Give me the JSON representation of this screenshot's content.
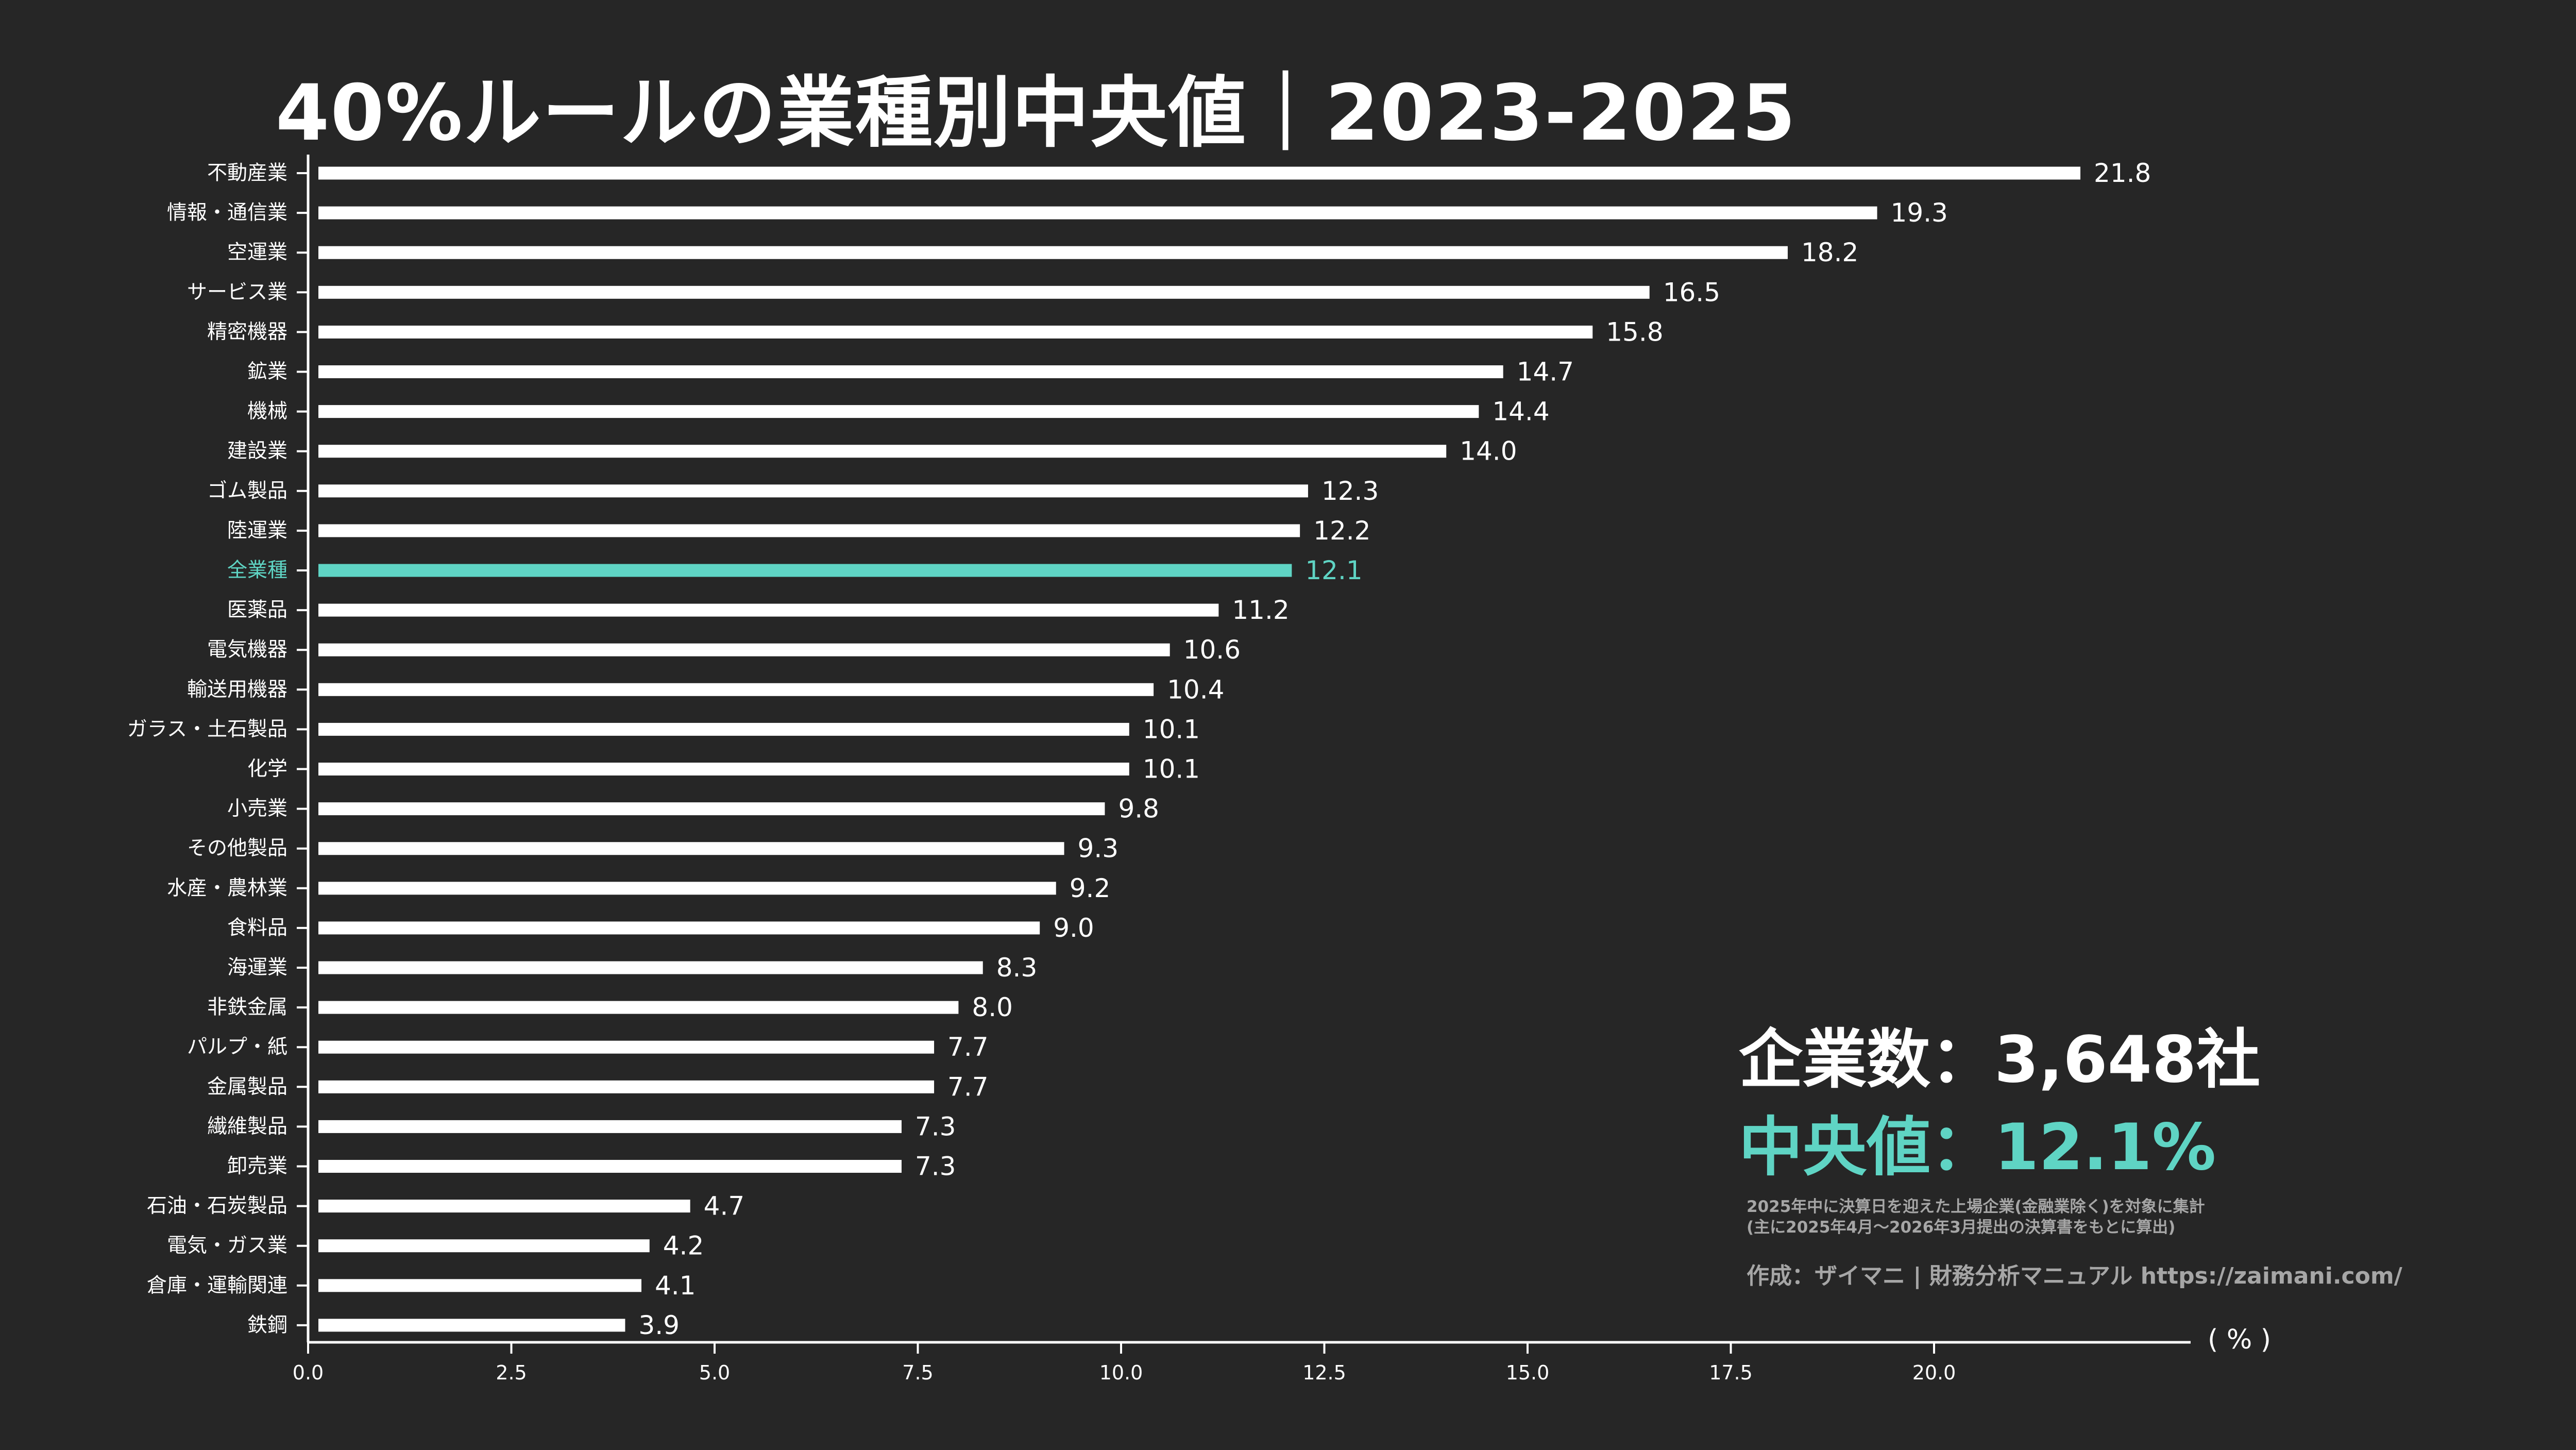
{
  "title": "40%ルールの業種別中央値｜2023-2025",
  "summary": {
    "company_count": "企業数：3,648社",
    "median": "中央値：12.1%"
  },
  "note_lines": [
    "2025年中に決算日を迎えた上場企業(金融業除く)を対象に集計",
    "(主に2025年4月〜2026年3月提出の決算書をもとに算出)"
  ],
  "credit": "作成：ザイマニ | 財務分析マニュアル https://zaimani.com/",
  "unit_label": "( % )",
  "colors": {
    "background": "#262626",
    "bar": "#ffffff",
    "highlight": "#5fd4c4",
    "axis": "#ffffff",
    "muted": "#a6a6a6"
  },
  "chart_data": {
    "type": "bar",
    "orientation": "horizontal",
    "categories": [
      "不動産業",
      "情報・通信業",
      "空運業",
      "サービス業",
      "精密機器",
      "鉱業",
      "機械",
      "建設業",
      "ゴム製品",
      "陸運業",
      "全業種",
      "医薬品",
      "電気機器",
      "輸送用機器",
      "ガラス・土石製品",
      "化学",
      "小売業",
      "その他製品",
      "水産・農林業",
      "食料品",
      "海運業",
      "非鉄金属",
      "パルプ・紙",
      "金属製品",
      "繊維製品",
      "卸売業",
      "石油・石炭製品",
      "電気・ガス業",
      "倉庫・運輸関連",
      "鉄鋼"
    ],
    "values": [
      21.8,
      19.3,
      18.2,
      16.5,
      15.8,
      14.7,
      14.4,
      14.0,
      12.3,
      12.2,
      12.1,
      11.2,
      10.6,
      10.4,
      10.1,
      10.1,
      9.8,
      9.3,
      9.2,
      9.0,
      8.3,
      8.0,
      7.7,
      7.7,
      7.3,
      7.3,
      4.7,
      4.2,
      4.1,
      3.9
    ],
    "value_labels": [
      "21.8",
      "19.3",
      "18.2",
      "16.5",
      "15.8",
      "14.7",
      "14.4",
      "14.0",
      "12.3",
      "12.2",
      "12.1",
      "11.2",
      "10.6",
      "10.4",
      "10.1",
      "10.1",
      "9.8",
      "9.3",
      "9.2",
      "9.0",
      "8.3",
      "8.0",
      "7.7",
      "7.7",
      "7.3",
      "7.3",
      "4.7",
      "4.2",
      "4.1",
      "3.9"
    ],
    "highlight_category": "全業種",
    "xlim": [
      0,
      22.2
    ],
    "xticks": [
      "0.0",
      "2.5",
      "5.0",
      "7.5",
      "10.0",
      "12.5",
      "15.0",
      "17.5",
      "20.0"
    ],
    "grid": false
  }
}
